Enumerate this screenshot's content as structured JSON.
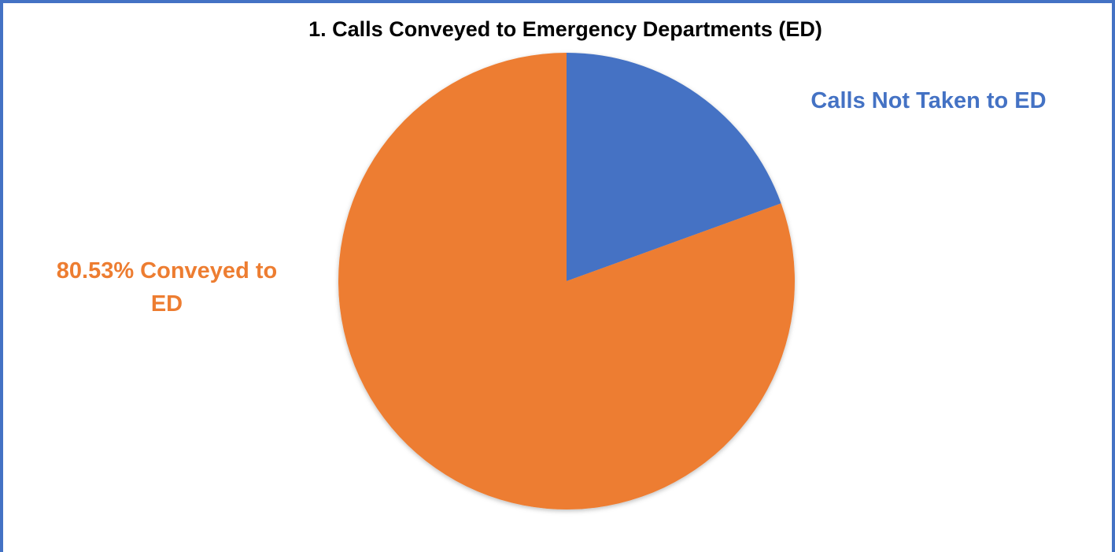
{
  "title": "1. Calls Conveyed to Emergency Departments (ED)",
  "chart_data": {
    "type": "pie",
    "title": "1. Calls Conveyed to Emergency Departments (ED)",
    "slices": [
      {
        "label_lines": [
          "Calls Not Taken to ED"
        ],
        "value": 19.47,
        "color": "#4472C4"
      },
      {
        "label_lines": [
          "80.53% Conveyed to",
          "ED"
        ],
        "value": 80.53,
        "color": "#ED7D31"
      }
    ],
    "start_angle_deg": 0,
    "direction": "clockwise",
    "legend": "none"
  }
}
